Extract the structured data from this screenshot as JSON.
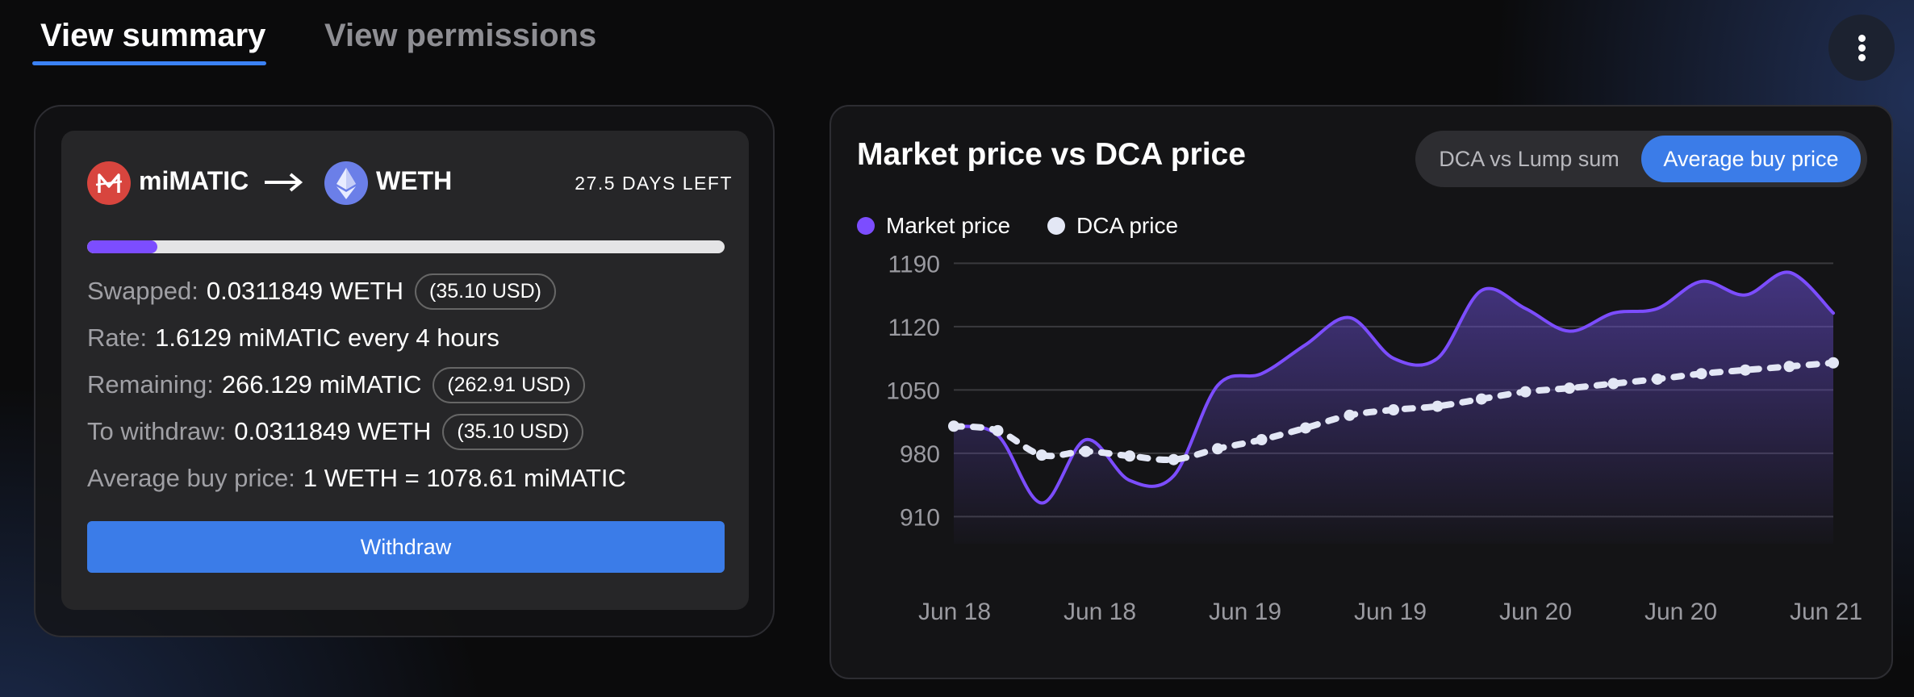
{
  "tabs": [
    {
      "label": "View summary",
      "active": true
    },
    {
      "label": "View permissions",
      "active": false
    }
  ],
  "menu": {
    "icon": "more-vertical-icon"
  },
  "position": {
    "from_token": {
      "symbol": "miMATIC",
      "icon": "mimatic-icon",
      "color": "#d8453e"
    },
    "to_token": {
      "symbol": "WETH",
      "icon": "ethereum-icon",
      "color": "#6b7fe8"
    },
    "arrow_icon": "arrow-right-icon",
    "days_left": "27.5 DAYS LEFT",
    "progress": 0.11,
    "progress_color": "#7c4dff",
    "swapped": {
      "label": "Swapped:",
      "value": "0.0311849 WETH",
      "usd": "(35.10 USD)"
    },
    "rate": {
      "label": "Rate:",
      "value": "1.6129 miMATIC every 4 hours"
    },
    "remaining": {
      "label": "Remaining:",
      "value": "266.129 miMATIC",
      "usd": "(262.91 USD)"
    },
    "to_withdraw": {
      "label": "To withdraw:",
      "value": "0.0311849 WETH",
      "usd": "(35.10 USD)"
    },
    "avg_buy_price": {
      "label": "Average buy price:",
      "value": "1 WETH = 1078.61 miMATIC"
    },
    "withdraw_label": "Withdraw"
  },
  "chart_panel": {
    "title": "Market price vs DCA price",
    "toggle_options": [
      {
        "label": "DCA vs Lump sum",
        "selected": false
      },
      {
        "label": "Average buy price",
        "selected": true
      }
    ],
    "legend": [
      {
        "label": "Market price",
        "color": "#7c4dff"
      },
      {
        "label": "DCA price",
        "color": "#e3e7f5"
      }
    ]
  },
  "chart_data": {
    "type": "line",
    "ylim": [
      880,
      1210
    ],
    "yticks": [
      910,
      980,
      1050,
      1120,
      1190
    ],
    "xtick_labels": [
      "Jun 18",
      "Jun 18",
      "Jun 19",
      "Jun 19",
      "Jun 20",
      "Jun 20",
      "Jun 21"
    ],
    "grid": true,
    "legend_position": "top-left",
    "series": [
      {
        "name": "Market price",
        "color": "#7c4dff",
        "area": true,
        "values": [
          1010,
          1000,
          925,
          995,
          950,
          955,
          1055,
          1068,
          1100,
          1130,
          1085,
          1085,
          1160,
          1140,
          1115,
          1135,
          1140,
          1170,
          1155,
          1180,
          1135
        ]
      },
      {
        "name": "DCA price",
        "color": "#e3e7f5",
        "dashed": true,
        "values": [
          1010,
          1005,
          978,
          982,
          977,
          973,
          985,
          995,
          1008,
          1022,
          1028,
          1032,
          1040,
          1048,
          1052,
          1057,
          1062,
          1068,
          1072,
          1076,
          1080
        ]
      }
    ]
  }
}
